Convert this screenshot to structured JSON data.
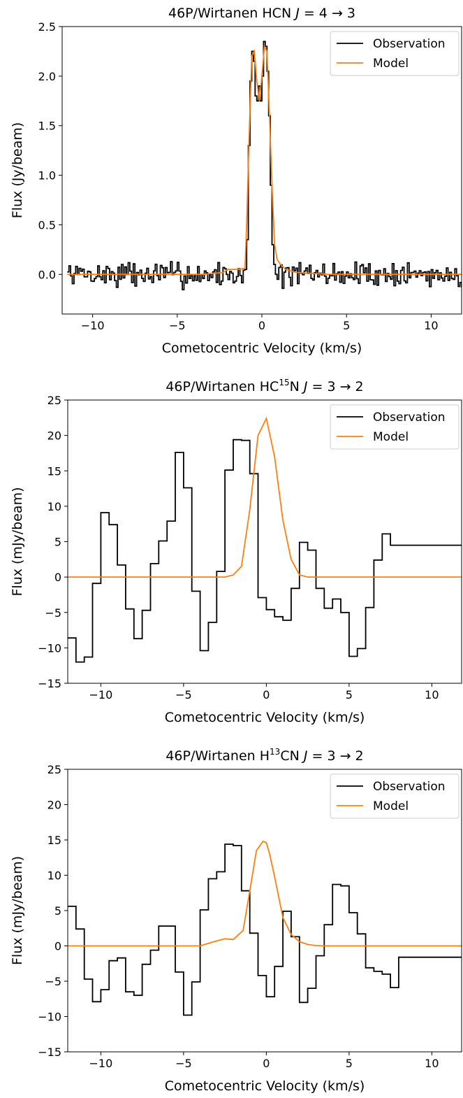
{
  "chart_data": [
    {
      "type": "line",
      "title": "46P/Wirtanen HCN J = 4 → 3",
      "title_parts": [
        "46P/Wirtanen HCN ",
        "J",
        " = 4 → 3"
      ],
      "xlabel": "Cometocentric Velocity (km/s)",
      "ylabel": "Flux (Jy/beam)",
      "xlim": [
        -11.8,
        11.8
      ],
      "ylim": [
        -0.4,
        2.5
      ],
      "xticks": [
        -10,
        -5,
        0,
        5,
        10
      ],
      "xtick_labels": [
        "−10",
        "−5",
        "0",
        "5",
        "10"
      ],
      "yticks": [
        0.0,
        0.5,
        1.0,
        1.5,
        2.0,
        2.5
      ],
      "ytick_labels": [
        "0.0",
        "0.5",
        "1.0",
        "1.5",
        "2.0",
        "2.5"
      ],
      "grid": false,
      "legend": "top-right",
      "series": [
        {
          "name": "Observation",
          "color": "#000000",
          "step": true,
          "noise": {
            "from": -11.5,
            "to": 11.8,
            "step": 0.1,
            "amp": 0.08,
            "seed": 7
          },
          "x": [
            -1.0,
            -0.9,
            -0.8,
            -0.7,
            -0.6,
            -0.5,
            -0.4,
            -0.3,
            -0.2,
            -0.1,
            0.0,
            0.1,
            0.2,
            0.3,
            0.4,
            0.5,
            0.6,
            0.7,
            0.8
          ],
          "y": [
            0.05,
            0.35,
            1.3,
            1.95,
            2.25,
            2.15,
            1.8,
            1.75,
            1.9,
            1.75,
            2.0,
            2.35,
            2.3,
            2.05,
            1.6,
            0.9,
            0.3,
            0.1,
            0.0
          ]
        },
        {
          "name": "Model",
          "color": "#ff7f0e",
          "step": false,
          "x": [
            -11.5,
            -3.5,
            -2.3,
            -2.0,
            -1.5,
            -1.0,
            -0.9,
            -0.75,
            -0.6,
            -0.45,
            -0.3,
            -0.15,
            0.0,
            0.15,
            0.3,
            0.45,
            0.6,
            0.75,
            0.9,
            1.1,
            1.4,
            2.0,
            4.0,
            11.8
          ],
          "y": [
            0.0,
            0.0,
            0.02,
            0.05,
            0.05,
            0.06,
            0.5,
            1.4,
            2.2,
            2.25,
            1.95,
            1.75,
            2.0,
            2.3,
            2.25,
            1.6,
            0.9,
            0.3,
            0.15,
            0.1,
            0.05,
            0.02,
            0.0,
            0.0
          ]
        }
      ]
    },
    {
      "type": "line",
      "title": "46P/Wirtanen HC15N J = 3 → 2",
      "title_parts": [
        "46P/Wirtanen HC",
        "15",
        "N ",
        "J",
        " = 3 → 2"
      ],
      "xlabel": "Cometocentric Velocity (km/s)",
      "ylabel": "Flux (mJy/beam)",
      "xlim": [
        -12,
        11.8
      ],
      "ylim": [
        -15,
        25
      ],
      "xticks": [
        -10,
        -5,
        0,
        5,
        10
      ],
      "xtick_labels": [
        "−10",
        "−5",
        "0",
        "5",
        "10"
      ],
      "yticks": [
        -15,
        -10,
        -5,
        0,
        5,
        10,
        15,
        20,
        25
      ],
      "ytick_labels": [
        "−15",
        "−10",
        "−5",
        "0",
        "5",
        "10",
        "15",
        "20",
        "25"
      ],
      "grid": false,
      "legend": "top-right",
      "series": [
        {
          "name": "Observation",
          "color": "#000000",
          "step": true,
          "x": [
            -12.0,
            -11.5,
            -11.0,
            -10.5,
            -10.0,
            -9.5,
            -9.0,
            -8.5,
            -8.0,
            -7.5,
            -7.0,
            -6.5,
            -6.0,
            -5.5,
            -5.0,
            -4.5,
            -4.0,
            -3.5,
            -3.0,
            -2.5,
            -2.0,
            -1.5,
            -1.0,
            -0.5,
            0.0,
            0.5,
            1.0,
            1.5,
            2.0,
            2.5,
            3.0,
            3.5,
            4.0,
            4.5,
            5.0,
            5.5,
            6.0,
            6.5,
            7.0,
            7.5,
            8.0,
            8.5,
            9.0,
            9.5,
            10.0,
            10.5,
            11.0,
            11.5
          ],
          "y": [
            -8.6,
            -12.0,
            -11.3,
            -0.9,
            9.1,
            7.4,
            1.7,
            -4.5,
            -8.7,
            -4.7,
            1.9,
            5.1,
            7.9,
            17.6,
            12.6,
            -2.0,
            -10.4,
            -6.4,
            0.8,
            15.1,
            19.4,
            19.3,
            14.6,
            -2.9,
            -4.6,
            -5.6,
            -6.1,
            -1.6,
            4.9,
            3.8,
            -1.6,
            -4.4,
            -3.1,
            -5.0,
            -11.2,
            -10.1,
            -4.3,
            2.4,
            6.1,
            4.5,
            4.5,
            4.5,
            4.5,
            4.5,
            4.5,
            4.5,
            4.5,
            4.5
          ]
        },
        {
          "name": "Model",
          "color": "#ff7f0e",
          "step": false,
          "x": [
            -12.0,
            -2.5,
            -2.0,
            -1.5,
            -1.0,
            -0.5,
            0.0,
            0.5,
            1.0,
            1.5,
            2.0,
            2.5,
            11.8
          ],
          "y": [
            0.0,
            0.0,
            0.3,
            1.5,
            9.5,
            20.0,
            22.4,
            17.0,
            8.0,
            2.5,
            0.3,
            0.0,
            0.0
          ]
        }
      ]
    },
    {
      "type": "line",
      "title": "46P/Wirtanen H13CN J = 3 → 2",
      "title_parts": [
        "46P/Wirtanen H",
        "13",
        "CN ",
        "J",
        " = 3 → 2"
      ],
      "xlabel": "Cometocentric Velocity (km/s)",
      "ylabel": "Flux (mJy/beam)",
      "xlim": [
        -12,
        11.8
      ],
      "ylim": [
        -15,
        25
      ],
      "xticks": [
        -10,
        -5,
        0,
        5,
        10
      ],
      "xtick_labels": [
        "−10",
        "−5",
        "0",
        "5",
        "10"
      ],
      "yticks": [
        -15,
        -10,
        -5,
        0,
        5,
        10,
        15,
        20,
        25
      ],
      "ytick_labels": [
        "−15",
        "−10",
        "−5",
        "0",
        "5",
        "10",
        "15",
        "20",
        "25"
      ],
      "grid": false,
      "legend": "top-right",
      "series": [
        {
          "name": "Observation",
          "color": "#000000",
          "step": true,
          "x": [
            -12.0,
            -11.5,
            -11.0,
            -10.5,
            -10.0,
            -9.5,
            -9.0,
            -8.5,
            -8.0,
            -7.5,
            -7.0,
            -6.5,
            -6.0,
            -5.5,
            -5.0,
            -4.5,
            -4.0,
            -3.5,
            -3.0,
            -2.5,
            -2.0,
            -1.5,
            -1.0,
            -0.5,
            0.0,
            0.5,
            1.0,
            1.5,
            2.0,
            2.5,
            3.0,
            3.5,
            4.0,
            4.5,
            5.0,
            5.5,
            6.0,
            6.5,
            7.0,
            7.5,
            8.0,
            8.5,
            9.0,
            9.5,
            10.0,
            10.5,
            11.0,
            11.5
          ],
          "y": [
            5.6,
            2.4,
            -4.7,
            -7.9,
            -6.2,
            -2.1,
            -1.7,
            -6.5,
            -7.0,
            -2.6,
            -0.6,
            2.8,
            2.8,
            -3.7,
            -9.8,
            -5.1,
            5.1,
            9.5,
            10.5,
            14.4,
            14.2,
            7.8,
            1.8,
            -4.2,
            -7.2,
            -2.9,
            4.9,
            1.3,
            -8.0,
            -6.0,
            -1.4,
            3.0,
            8.7,
            8.5,
            4.7,
            1.7,
            -3.1,
            -3.6,
            -4.0,
            -5.9,
            -1.6,
            -1.6,
            -1.6,
            -1.6,
            -1.6,
            -1.6,
            -1.6,
            -1.6
          ]
        },
        {
          "name": "Model",
          "color": "#ff7f0e",
          "step": false,
          "x": [
            -12.0,
            -4.0,
            -3.6,
            -3.0,
            -2.5,
            -2.0,
            -1.4,
            -1.0,
            -0.6,
            -0.2,
            0.0,
            0.2,
            0.5,
            1.0,
            1.5,
            2.0,
            2.5,
            3.0,
            3.5,
            11.8
          ],
          "y": [
            0.0,
            0.0,
            0.3,
            0.7,
            1.0,
            0.9,
            2.2,
            7.8,
            13.5,
            14.8,
            14.6,
            13.0,
            9.8,
            4.0,
            1.6,
            0.6,
            0.2,
            0.05,
            0.0,
            0.0
          ]
        }
      ]
    }
  ]
}
